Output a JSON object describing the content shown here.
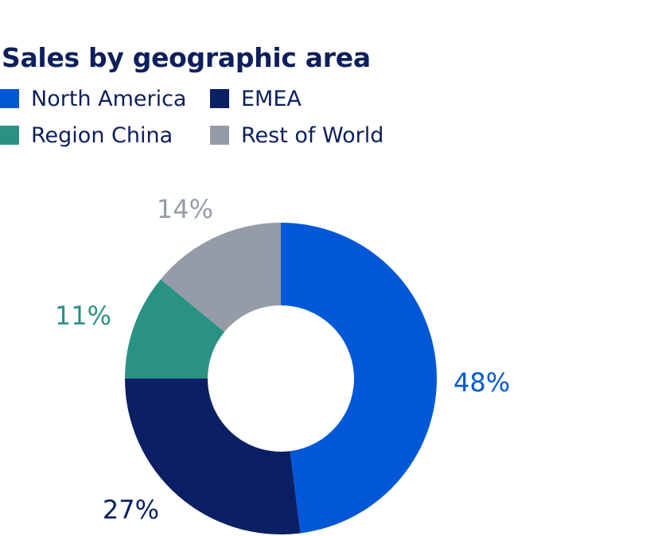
{
  "chart_data": {
    "type": "pie",
    "title": "Sales by geographic area",
    "series": [
      {
        "name": "North America",
        "value": 48,
        "label": "48%",
        "color": "#0058d6"
      },
      {
        "name": "EMEA",
        "value": 27,
        "label": "27%",
        "color": "#0a1f64"
      },
      {
        "name": "Region China",
        "value": 11,
        "label": "11%",
        "color": "#2a9285"
      },
      {
        "name": "Rest of World",
        "value": 14,
        "label": "14%",
        "color": "#969ca7"
      }
    ],
    "style": "donut",
    "legend_placement": "top-left"
  }
}
